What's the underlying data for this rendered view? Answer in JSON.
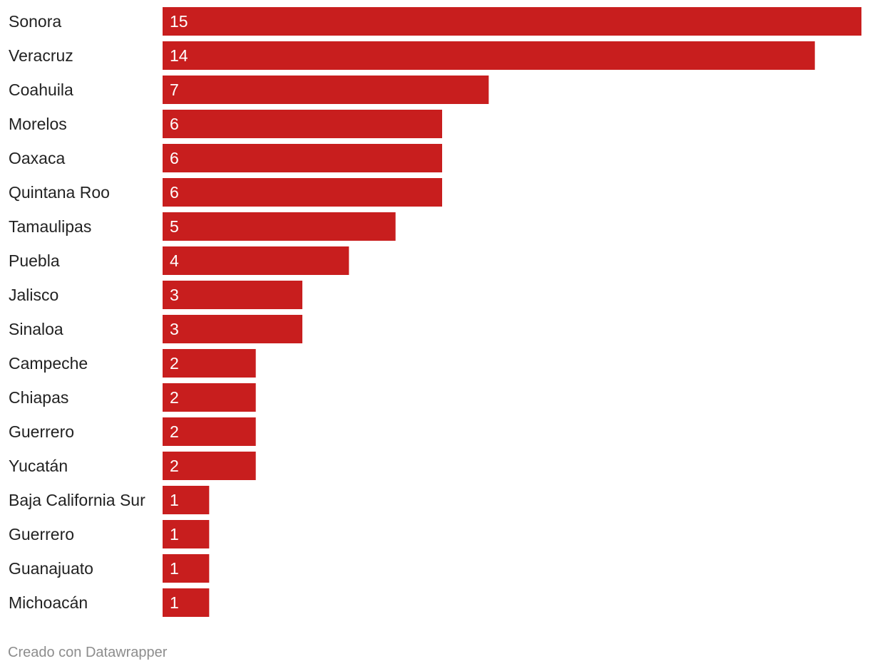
{
  "chart_data": {
    "type": "bar",
    "orientation": "horizontal",
    "categories": [
      "Sonora",
      "Veracruz",
      "Coahuila",
      "Morelos",
      "Oaxaca",
      "Quintana Roo",
      "Tamaulipas",
      "Puebla",
      "Jalisco",
      "Sinaloa",
      "Campeche",
      "Chiapas",
      "Guerrero",
      "Yucatán",
      "Baja California Sur",
      "Guerrero",
      "Guanajuato",
      "Michoacán"
    ],
    "values": [
      15,
      14,
      7,
      6,
      6,
      6,
      5,
      4,
      3,
      3,
      2,
      2,
      2,
      2,
      1,
      1,
      1,
      1
    ],
    "xlim": [
      0,
      15
    ],
    "grid": false,
    "legend": "none",
    "bar_color": "#c81e1e"
  },
  "footer": {
    "credit": "Creado con Datawrapper"
  },
  "colors": {
    "bar": "#c81e1e",
    "label_text": "#222222",
    "value_text": "#ffffff",
    "credit_text": "#8d8d8d"
  }
}
